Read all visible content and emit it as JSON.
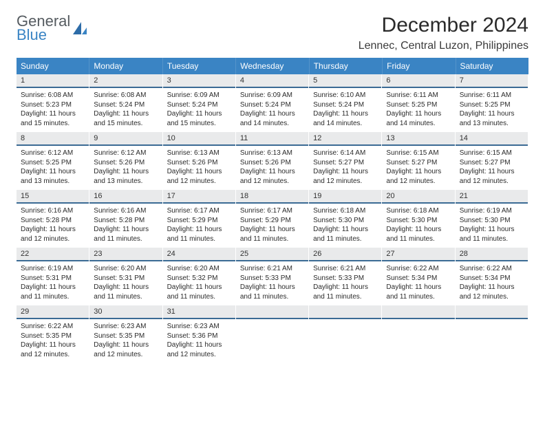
{
  "logo": {
    "line1": "General",
    "line2": "Blue"
  },
  "title": "December 2024",
  "location": "Lennec, Central Luzon, Philippines",
  "colors": {
    "header_bg": "#3a84c4",
    "header_text": "#ffffff",
    "daynum_bg": "#e9eaeb",
    "daynum_border": "#3a6a94",
    "body_text": "#2a2a2a",
    "logo_gray": "#555b60",
    "logo_blue": "#3a84c4",
    "page_bg": "#ffffff"
  },
  "day_names": [
    "Sunday",
    "Monday",
    "Tuesday",
    "Wednesday",
    "Thursday",
    "Friday",
    "Saturday"
  ],
  "weeks": [
    [
      {
        "n": "1",
        "sunrise": "6:08 AM",
        "sunset": "5:23 PM",
        "daylight": "11 hours and 15 minutes."
      },
      {
        "n": "2",
        "sunrise": "6:08 AM",
        "sunset": "5:24 PM",
        "daylight": "11 hours and 15 minutes."
      },
      {
        "n": "3",
        "sunrise": "6:09 AM",
        "sunset": "5:24 PM",
        "daylight": "11 hours and 15 minutes."
      },
      {
        "n": "4",
        "sunrise": "6:09 AM",
        "sunset": "5:24 PM",
        "daylight": "11 hours and 14 minutes."
      },
      {
        "n": "5",
        "sunrise": "6:10 AM",
        "sunset": "5:24 PM",
        "daylight": "11 hours and 14 minutes."
      },
      {
        "n": "6",
        "sunrise": "6:11 AM",
        "sunset": "5:25 PM",
        "daylight": "11 hours and 14 minutes."
      },
      {
        "n": "7",
        "sunrise": "6:11 AM",
        "sunset": "5:25 PM",
        "daylight": "11 hours and 13 minutes."
      }
    ],
    [
      {
        "n": "8",
        "sunrise": "6:12 AM",
        "sunset": "5:25 PM",
        "daylight": "11 hours and 13 minutes."
      },
      {
        "n": "9",
        "sunrise": "6:12 AM",
        "sunset": "5:26 PM",
        "daylight": "11 hours and 13 minutes."
      },
      {
        "n": "10",
        "sunrise": "6:13 AM",
        "sunset": "5:26 PM",
        "daylight": "11 hours and 12 minutes."
      },
      {
        "n": "11",
        "sunrise": "6:13 AM",
        "sunset": "5:26 PM",
        "daylight": "11 hours and 12 minutes."
      },
      {
        "n": "12",
        "sunrise": "6:14 AM",
        "sunset": "5:27 PM",
        "daylight": "11 hours and 12 minutes."
      },
      {
        "n": "13",
        "sunrise": "6:15 AM",
        "sunset": "5:27 PM",
        "daylight": "11 hours and 12 minutes."
      },
      {
        "n": "14",
        "sunrise": "6:15 AM",
        "sunset": "5:27 PM",
        "daylight": "11 hours and 12 minutes."
      }
    ],
    [
      {
        "n": "15",
        "sunrise": "6:16 AM",
        "sunset": "5:28 PM",
        "daylight": "11 hours and 12 minutes."
      },
      {
        "n": "16",
        "sunrise": "6:16 AM",
        "sunset": "5:28 PM",
        "daylight": "11 hours and 11 minutes."
      },
      {
        "n": "17",
        "sunrise": "6:17 AM",
        "sunset": "5:29 PM",
        "daylight": "11 hours and 11 minutes."
      },
      {
        "n": "18",
        "sunrise": "6:17 AM",
        "sunset": "5:29 PM",
        "daylight": "11 hours and 11 minutes."
      },
      {
        "n": "19",
        "sunrise": "6:18 AM",
        "sunset": "5:30 PM",
        "daylight": "11 hours and 11 minutes."
      },
      {
        "n": "20",
        "sunrise": "6:18 AM",
        "sunset": "5:30 PM",
        "daylight": "11 hours and 11 minutes."
      },
      {
        "n": "21",
        "sunrise": "6:19 AM",
        "sunset": "5:30 PM",
        "daylight": "11 hours and 11 minutes."
      }
    ],
    [
      {
        "n": "22",
        "sunrise": "6:19 AM",
        "sunset": "5:31 PM",
        "daylight": "11 hours and 11 minutes."
      },
      {
        "n": "23",
        "sunrise": "6:20 AM",
        "sunset": "5:31 PM",
        "daylight": "11 hours and 11 minutes."
      },
      {
        "n": "24",
        "sunrise": "6:20 AM",
        "sunset": "5:32 PM",
        "daylight": "11 hours and 11 minutes."
      },
      {
        "n": "25",
        "sunrise": "6:21 AM",
        "sunset": "5:33 PM",
        "daylight": "11 hours and 11 minutes."
      },
      {
        "n": "26",
        "sunrise": "6:21 AM",
        "sunset": "5:33 PM",
        "daylight": "11 hours and 11 minutes."
      },
      {
        "n": "27",
        "sunrise": "6:22 AM",
        "sunset": "5:34 PM",
        "daylight": "11 hours and 11 minutes."
      },
      {
        "n": "28",
        "sunrise": "6:22 AM",
        "sunset": "5:34 PM",
        "daylight": "11 hours and 12 minutes."
      }
    ],
    [
      {
        "n": "29",
        "sunrise": "6:22 AM",
        "sunset": "5:35 PM",
        "daylight": "11 hours and 12 minutes."
      },
      {
        "n": "30",
        "sunrise": "6:23 AM",
        "sunset": "5:35 PM",
        "daylight": "11 hours and 12 minutes."
      },
      {
        "n": "31",
        "sunrise": "6:23 AM",
        "sunset": "5:36 PM",
        "daylight": "11 hours and 12 minutes."
      },
      {
        "n": "",
        "empty": true
      },
      {
        "n": "",
        "empty": true
      },
      {
        "n": "",
        "empty": true
      },
      {
        "n": "",
        "empty": true
      }
    ]
  ],
  "labels": {
    "sunrise": "Sunrise:",
    "sunset": "Sunset:",
    "daylight": "Daylight:"
  }
}
